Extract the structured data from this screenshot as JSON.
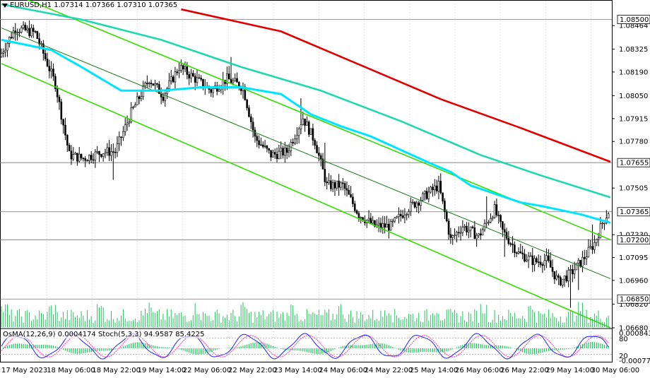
{
  "header": {
    "symbol_text": "EURUSD,H1",
    "ohlc_text": "1.07314 1.07366 1.07310 1.07365"
  },
  "oscillator": {
    "title": "OsMA(12,26,9) 0.0004174  Stoch(5,3,3) 94.9587 85.4225"
  },
  "chart_data": {
    "type": "candlestick",
    "price_range": [
      1.0668,
      1.0854
    ],
    "price_ticks": [
      "1.08464",
      "1.08325",
      "1.08190",
      "1.08050",
      "1.07915",
      "1.07780",
      "1.07505",
      "1.07230",
      "1.07095",
      "1.06960",
      "1.06820",
      "1.06680"
    ],
    "highlight_levels": [
      {
        "label": "1.08500",
        "value": 1.085,
        "color": "#777777"
      },
      {
        "label": "1.07655",
        "value": 1.07655,
        "color": "#777777"
      },
      {
        "label": "1.07365",
        "value": 1.07365,
        "color": "#777777"
      },
      {
        "label": "1.07200",
        "value": 1.072,
        "color": "#777777"
      },
      {
        "label": "1.06850",
        "value": 1.0685,
        "color": "#777777"
      }
    ],
    "time_labels": [
      "17 May 2023",
      "18 May 06:00",
      "18 May 22:00",
      "19 May 14:00",
      "22 May 06:00",
      "22 May 22:00",
      "23 May 14:00",
      "24 May 06:00",
      "24 May 22:00",
      "25 May 14:00",
      "26 May 06:00",
      "26 May 22:00",
      "29 May 14:00",
      "30 May 06:00"
    ],
    "osc_ticks": [
      "0.0008432",
      "80",
      "20",
      "-0.000778"
    ],
    "colors": {
      "candle": "#000000",
      "ema_fast": "#00e5ff",
      "ema_mid": "#20d8b0",
      "ema_slow": "#e00000",
      "channel": "#33dd00",
      "channel_mid": "#1a7a1a",
      "volume": "#22c55e",
      "osma": "#22c55e",
      "stoch_main": "#1f1fff",
      "stoch_signal": "#ff2ea8"
    },
    "series": [
      {
        "name": "EMA fast",
        "kind": "ema_fast",
        "x": [
          0,
          25,
          40,
          60,
          80,
          100,
          120,
          140,
          155,
          170,
          185,
          200,
          215,
          225,
          235,
          250,
          260,
          270,
          290,
          305
        ],
        "y": [
          1.0838,
          1.0832,
          1.0822,
          1.0808,
          1.0808,
          1.081,
          1.081,
          1.0806,
          1.0794,
          1.0787,
          1.0781,
          1.0773,
          1.0765,
          1.076,
          1.0752,
          1.0746,
          1.0742,
          1.074,
          1.0735,
          1.073
        ]
      },
      {
        "name": "EMA mid",
        "kind": "ema_mid",
        "x": [
          0,
          40,
          80,
          120,
          160,
          200,
          240,
          270,
          305
        ],
        "y": [
          1.0859,
          1.085,
          1.0838,
          1.0822,
          1.0808,
          1.079,
          1.077,
          1.0758,
          1.0745
        ]
      },
      {
        "name": "EMA slow",
        "kind": "ema_slow",
        "x": [
          90,
          140,
          180,
          220,
          260,
          305
        ],
        "y": [
          1.0856,
          1.0843,
          1.0823,
          1.0803,
          1.0786,
          1.0766
        ]
      }
    ],
    "channel": {
      "upper": {
        "x": [
          0,
          305
        ],
        "y": [
          1.0868,
          1.072
        ]
      },
      "middle": {
        "x": [
          0,
          305
        ],
        "y": [
          1.0845,
          1.0697
        ]
      },
      "lower": {
        "x": [
          0,
          305
        ],
        "y": [
          1.0824,
          1.0668
        ]
      }
    }
  }
}
